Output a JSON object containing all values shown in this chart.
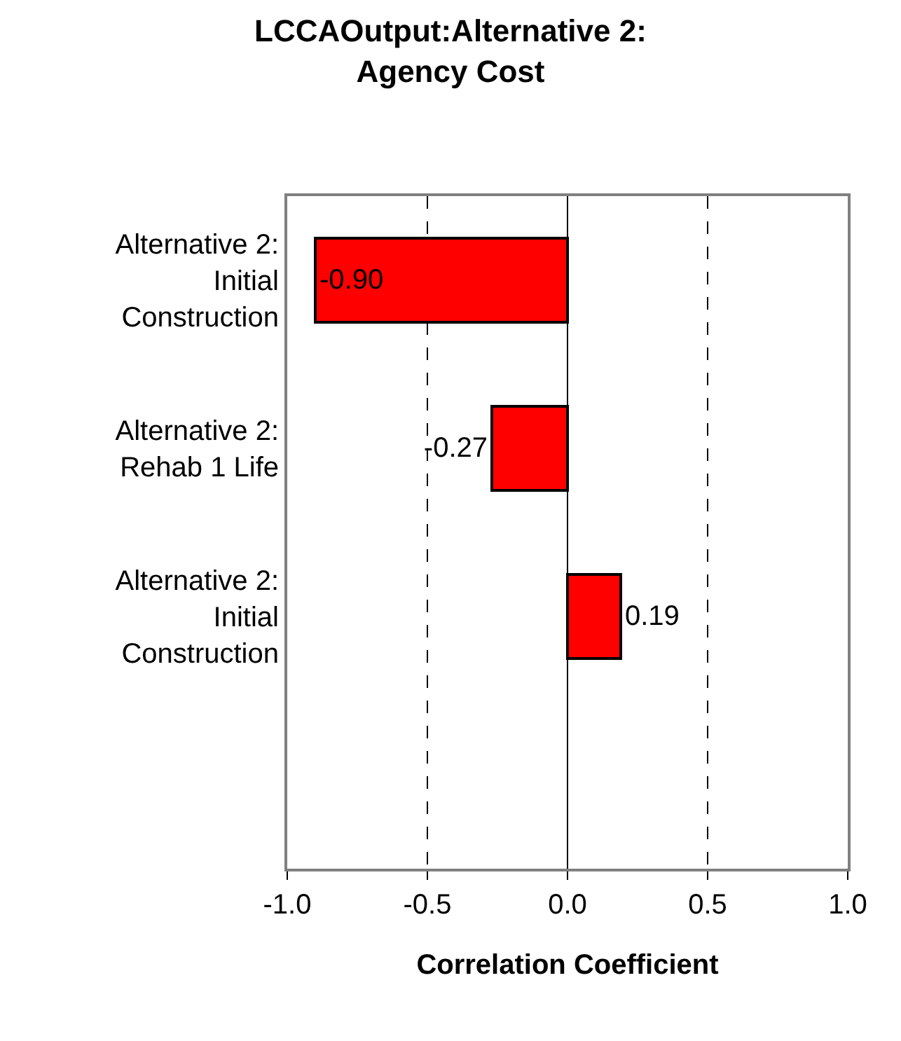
{
  "chart_data": {
    "type": "bar",
    "orientation": "horizontal",
    "title": "LCCAOutput:Alternative 2: Agency Cost",
    "xlabel": "Correlation Coefficient",
    "categories": [
      "Alternative 2: Initial Construction",
      "Alternative 2: Rehab 1 Life",
      "Alternative 2: Initial Construction",
      null
    ],
    "values": [
      -0.9,
      -0.27,
      0.19,
      null
    ],
    "value_labels": [
      "-0.90",
      "-0.27",
      "0.19",
      null
    ],
    "color": "#ff0000",
    "xlim": [
      -1.0,
      1.0
    ],
    "xticks": [
      {
        "value": -1.0,
        "label": "-1.0"
      },
      {
        "value": -0.5,
        "label": "-0.5"
      },
      {
        "value": 0.0,
        "label": "0.0"
      },
      {
        "value": 0.5,
        "label": "0.5"
      },
      {
        "value": 1.0,
        "label": "1.0"
      }
    ],
    "grid": "x",
    "legend": false
  }
}
